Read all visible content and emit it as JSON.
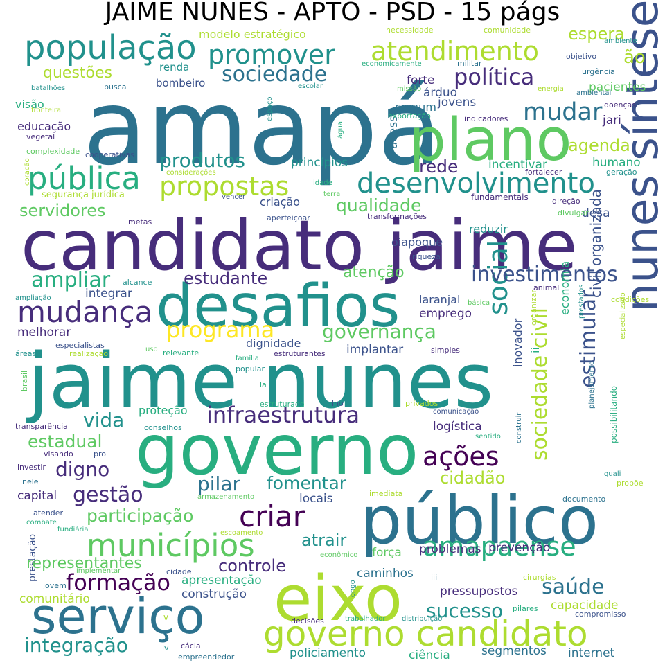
{
  "title": "JAIME NUNES - APTO - PSD - 15 págs",
  "palette": [
    "#440154",
    "#472d7b",
    "#3b528b",
    "#2c728e",
    "#21918c",
    "#28ae80",
    "#5ec962",
    "#addc30",
    "#fde725"
  ],
  "words": [
    {
      "text": "amapá",
      "c": 3
    },
    {
      "text": "candidato jaime",
      "c": 1
    },
    {
      "text": "jaime nunes",
      "c": 4
    },
    {
      "text": "governo",
      "c": 5
    },
    {
      "text": "público",
      "c": 3
    },
    {
      "text": "plano",
      "c": 6
    },
    {
      "text": "eixo",
      "c": 7
    },
    {
      "text": "desafios",
      "c": 4
    },
    {
      "text": "serviço",
      "c": 3
    },
    {
      "text": "governo candidato",
      "c": 7
    },
    {
      "text": "nunes síntese",
      "c": 2
    },
    {
      "text": "população",
      "c": 4
    },
    {
      "text": "pública",
      "c": 5
    },
    {
      "text": "municípios",
      "c": 6
    },
    {
      "text": "mudança",
      "c": 1
    },
    {
      "text": "desenvolvimento",
      "c": 4
    },
    {
      "text": "atendimento",
      "c": 7
    },
    {
      "text": "propostas",
      "c": 7
    },
    {
      "text": "infraestrutura",
      "c": 1
    },
    {
      "text": "promover",
      "c": 4
    },
    {
      "text": "criar",
      "c": 0
    },
    {
      "text": "social",
      "c": 4
    },
    {
      "text": "programa",
      "c": 8
    },
    {
      "text": "amapaense",
      "c": 5
    },
    {
      "text": "mudar",
      "c": 3
    },
    {
      "text": "política",
      "c": 1
    },
    {
      "text": "ações",
      "c": 0
    },
    {
      "text": "formação",
      "c": 0
    },
    {
      "text": "sociedade",
      "c": 3
    },
    {
      "text": "sociedade civil",
      "c": 7
    },
    {
      "text": "investimentos",
      "c": 2
    },
    {
      "text": "estimular",
      "c": 2
    },
    {
      "text": "governança",
      "c": 6
    },
    {
      "text": "saúde",
      "c": 3
    },
    {
      "text": "gestão",
      "c": 1
    },
    {
      "text": "integração",
      "c": 4
    },
    {
      "text": "produtos",
      "c": 4
    },
    {
      "text": "sucesso",
      "c": 4
    },
    {
      "text": "ampliar",
      "c": 5
    },
    {
      "text": "qualidade",
      "c": 6
    },
    {
      "text": "fomentar",
      "c": 4
    },
    {
      "text": "estadual",
      "c": 6
    },
    {
      "text": "participação",
      "c": 6
    },
    {
      "text": "agenda",
      "c": 7
    },
    {
      "text": "espera",
      "c": 7
    },
    {
      "text": "estudante",
      "c": 1
    },
    {
      "text": "controle",
      "c": 1
    },
    {
      "text": "digno",
      "c": 1
    },
    {
      "text": "vida",
      "c": 4
    },
    {
      "text": "atrair",
      "c": 4
    },
    {
      "text": "cidadão",
      "c": 7
    },
    {
      "text": "pilar",
      "c": 3
    },
    {
      "text": "atenção",
      "c": 6
    },
    {
      "text": "representantes",
      "c": 6
    },
    {
      "text": "servidores",
      "c": 6
    },
    {
      "text": "questões",
      "c": 7
    },
    {
      "text": "rede",
      "c": 1
    },
    {
      "text": "ão",
      "c": 7
    },
    {
      "text": "civil organizada",
      "c": 2
    },
    {
      "text": "economia",
      "c": 5
    },
    {
      "text": "pressupostos",
      "c": 1
    },
    {
      "text": "capacidade",
      "c": 7
    },
    {
      "text": "policiamento",
      "c": 4
    },
    {
      "text": "ciência",
      "c": 5
    },
    {
      "text": "segmentos",
      "c": 3
    },
    {
      "text": "internet",
      "c": 3
    },
    {
      "text": "comunitário",
      "c": 7
    },
    {
      "text": "construção",
      "c": 2
    },
    {
      "text": "apresentação",
      "c": 5
    },
    {
      "text": "caminhos",
      "c": 3
    },
    {
      "text": "problemas",
      "c": 1
    },
    {
      "text": "prevenção",
      "c": 1
    },
    {
      "text": "força",
      "c": 6
    },
    {
      "text": "locais",
      "c": 2
    },
    {
      "text": "capital",
      "c": 1
    },
    {
      "text": "melhorar",
      "c": 1
    },
    {
      "text": "integrar",
      "c": 2
    },
    {
      "text": "emprego",
      "c": 1
    },
    {
      "text": "laranjal",
      "c": 2
    },
    {
      "text": "implantar",
      "c": 2
    },
    {
      "text": "dignidade",
      "c": 2
    },
    {
      "text": "logística",
      "c": 1
    },
    {
      "text": "inovador",
      "c": 2
    },
    {
      "text": "ii",
      "c": 5
    },
    {
      "text": "proteção",
      "c": 5
    },
    {
      "text": "oiapoque",
      "c": 2
    },
    {
      "text": "criação",
      "c": 2
    },
    {
      "text": "reduzir",
      "c": 4
    },
    {
      "text": "desa",
      "c": 2
    },
    {
      "text": "incentivar",
      "c": 5
    },
    {
      "text": "humano",
      "c": 5
    },
    {
      "text": "acesso",
      "c": 3
    },
    {
      "text": "princípios",
      "c": 4
    },
    {
      "text": "jovens",
      "c": 2
    },
    {
      "text": "forte",
      "c": 1
    },
    {
      "text": "árduo",
      "c": 2
    },
    {
      "text": "pacientes",
      "c": 6
    },
    {
      "text": "comum",
      "c": 3
    },
    {
      "text": "jari",
      "c": 1
    },
    {
      "text": "modelo estratégico",
      "c": 7
    },
    {
      "text": "renda",
      "c": 4
    },
    {
      "text": "bombeiro",
      "c": 2
    },
    {
      "text": "visão",
      "c": 5
    },
    {
      "text": "educação",
      "c": 1
    },
    {
      "text": "fundamentais",
      "c": 1
    },
    {
      "text": "idade",
      "c": 5
    },
    {
      "text": "terra",
      "c": 6
    },
    {
      "text": "vencer",
      "c": 2
    },
    {
      "text": "aperfeiçoar",
      "c": 2
    },
    {
      "text": "transformações",
      "c": 1
    },
    {
      "text": "metas",
      "c": 1
    },
    {
      "text": "riqueza",
      "c": 2
    },
    {
      "text": "alcance",
      "c": 4
    },
    {
      "text": "ampliação",
      "c": 4
    },
    {
      "text": "animal",
      "c": 1
    },
    {
      "text": "básica",
      "c": 6
    },
    {
      "text": "condições",
      "c": 7
    },
    {
      "text": "organizar",
      "c": 7
    },
    {
      "text": "prestados",
      "c": 4
    },
    {
      "text": "especializado",
      "c": 7
    },
    {
      "text": "especialistas",
      "c": 2
    },
    {
      "text": "realização",
      "c": 7
    },
    {
      "text": "uso",
      "c": 6
    },
    {
      "text": "relevante",
      "c": 5
    },
    {
      "text": "família",
      "c": 5
    },
    {
      "text": "popular",
      "c": 4
    },
    {
      "text": "estruturantes",
      "c": 1
    },
    {
      "text": "simples",
      "c": 1
    },
    {
      "text": "áreas",
      "c": 4
    },
    {
      "text": "brasil",
      "c": 6
    },
    {
      "text": "la",
      "c": 5
    },
    {
      "text": "estruturado",
      "c": 5
    },
    {
      "text": "lho",
      "c": 2
    },
    {
      "text": "privados",
      "c": 7
    },
    {
      "text": "comunicação",
      "c": 2
    },
    {
      "text": "construir",
      "c": 3
    },
    {
      "text": "sentido",
      "c": 5
    },
    {
      "text": "transparência",
      "c": 1
    },
    {
      "text": "conselhos",
      "c": 4
    },
    {
      "text": "visando",
      "c": 1
    },
    {
      "text": "pro",
      "c": 2
    },
    {
      "text": "investir",
      "c": 1
    },
    {
      "text": "nele",
      "c": 3
    },
    {
      "text": "armazenamento",
      "c": 6
    },
    {
      "text": "imediata",
      "c": 7
    },
    {
      "text": "quali",
      "c": 4
    },
    {
      "text": "propõe",
      "c": 7
    },
    {
      "text": "documento",
      "c": 3
    },
    {
      "text": "atender",
      "c": 2
    },
    {
      "text": "combate",
      "c": 5
    },
    {
      "text": "fundiária",
      "c": 5
    },
    {
      "text": "escoamento",
      "c": 7
    },
    {
      "text": "econômico",
      "c": 6
    },
    {
      "text": "prestação",
      "c": 2
    },
    {
      "text": "implementar",
      "c": 6
    },
    {
      "text": "cidade",
      "c": 2
    },
    {
      "text": "jovem",
      "c": 3
    },
    {
      "text": "iii",
      "c": 3
    },
    {
      "text": "longo",
      "c": 4
    },
    {
      "text": "cirurgias",
      "c": 7
    },
    {
      "text": "pilares",
      "c": 5
    },
    {
      "text": "compromisso",
      "c": 2
    },
    {
      "text": "decisões",
      "c": 1
    },
    {
      "text": "trabalhador",
      "c": 5
    },
    {
      "text": "distribuição",
      "c": 4
    },
    {
      "text": "v",
      "c": 7
    },
    {
      "text": "iv",
      "c": 4
    },
    {
      "text": "cácia",
      "c": 1
    },
    {
      "text": "empreendedor",
      "c": 3
    },
    {
      "text": "necessidade",
      "c": 7
    },
    {
      "text": "comunidade",
      "c": 7
    },
    {
      "text": "economicamente",
      "c": 5
    },
    {
      "text": "militar",
      "c": 3
    },
    {
      "text": "objetivo",
      "c": 2
    },
    {
      "text": "ambiente",
      "c": 4
    },
    {
      "text": "urgência",
      "c": 3
    },
    {
      "text": "missão",
      "c": 6
    },
    {
      "text": "energia",
      "c": 7
    },
    {
      "text": "ambiental",
      "c": 3
    },
    {
      "text": "batalhões",
      "c": 4
    },
    {
      "text": "busca",
      "c": 3
    },
    {
      "text": "escolar",
      "c": 4
    },
    {
      "text": "fronteira",
      "c": 7
    },
    {
      "text": "espaço",
      "c": 4
    },
    {
      "text": "exportação",
      "c": 5
    },
    {
      "text": "água",
      "c": 5
    },
    {
      "text": "indicadores",
      "c": 1
    },
    {
      "text": "doenças",
      "c": 1
    },
    {
      "text": "vegetal",
      "c": 1
    },
    {
      "text": "complexidade",
      "c": 6
    },
    {
      "text": "cooperativas",
      "c": 2
    },
    {
      "text": "coração",
      "c": 7
    },
    {
      "text": "considerações",
      "c": 7
    },
    {
      "text": "fortalecer",
      "c": 1
    },
    {
      "text": "geração",
      "c": 4
    },
    {
      "text": "segurança jurídica",
      "c": 7
    },
    {
      "text": "direção",
      "c": 1
    },
    {
      "text": "divulgar",
      "c": 6
    },
    {
      "text": "planejamento",
      "c": 3
    },
    {
      "text": "possibilitando",
      "c": 5
    }
  ]
}
